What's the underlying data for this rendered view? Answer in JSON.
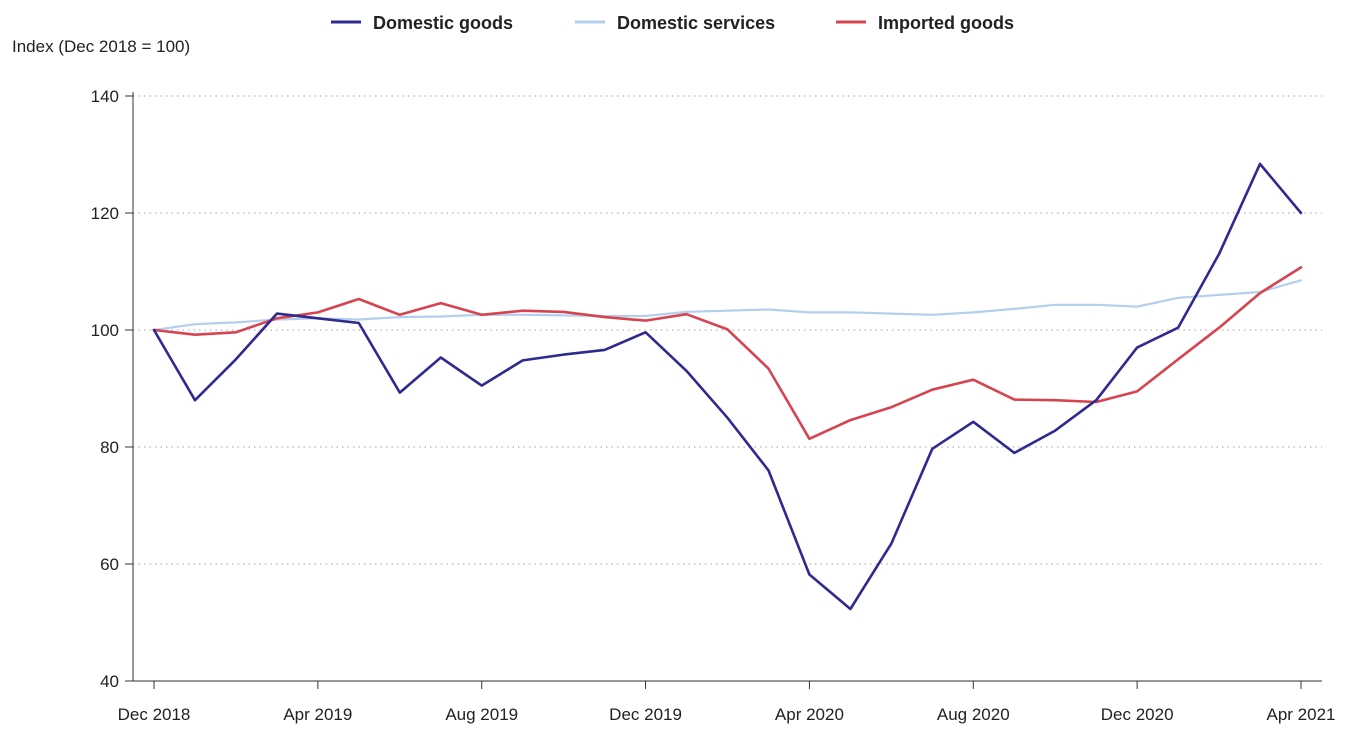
{
  "chart_data": {
    "type": "line",
    "ylabel": "Index (Dec 2018 = 100)",
    "ylim": [
      40,
      140
    ],
    "yticks": [
      40,
      60,
      80,
      100,
      120,
      140
    ],
    "xtick_labels": [
      "Dec 2018",
      "Apr 2019",
      "Aug 2019",
      "Dec 2019",
      "Apr 2020",
      "Aug 2020",
      "Dec 2020",
      "Apr 2021"
    ],
    "x": [
      "Dec 2018",
      "Jan 2019",
      "Feb 2019",
      "Mar 2019",
      "Apr 2019",
      "May 2019",
      "Jun 2019",
      "Jul 2019",
      "Aug 2019",
      "Sep 2019",
      "Oct 2019",
      "Nov 2019",
      "Dec 2019",
      "Jan 2020",
      "Feb 2020",
      "Mar 2020",
      "Apr 2020",
      "May 2020",
      "Jun 2020",
      "Jul 2020",
      "Aug 2020",
      "Sep 2020",
      "Oct 2020",
      "Nov 2020",
      "Dec 2020",
      "Jan 2021",
      "Feb 2021",
      "Mar 2021",
      "Apr 2021"
    ],
    "grid": "horizontal-dotted",
    "legend_position": "top",
    "series": [
      {
        "name": "Domestic goods",
        "color": "#2e2a8f",
        "values": [
          100.0,
          88.0,
          95.0,
          102.8,
          102.0,
          101.2,
          89.3,
          95.3,
          90.5,
          94.8,
          95.8,
          96.6,
          99.6,
          93.0,
          85.0,
          76.0,
          58.2,
          52.3,
          63.5,
          79.7,
          84.3,
          79.0,
          82.8,
          88.0,
          97.0,
          100.4,
          113.0,
          128.4,
          120.0
        ]
      },
      {
        "name": "Domestic services",
        "color": "#b4cfee",
        "values": [
          100.0,
          101.0,
          101.3,
          101.8,
          102.0,
          101.8,
          102.2,
          102.3,
          102.6,
          102.6,
          102.5,
          102.4,
          102.4,
          103.1,
          103.3,
          103.5,
          103.0,
          103.0,
          102.8,
          102.6,
          103.0,
          103.6,
          104.3,
          104.3,
          104.0,
          105.5,
          106.0,
          106.5,
          108.5
        ]
      },
      {
        "name": "Imported goods",
        "color": "#d6454f",
        "values": [
          100.0,
          99.2,
          99.6,
          102.0,
          103.0,
          105.3,
          102.6,
          104.6,
          102.6,
          103.3,
          103.1,
          102.2,
          101.6,
          102.7,
          100.1,
          93.4,
          81.4,
          84.6,
          86.8,
          89.8,
          91.5,
          88.1,
          88.0,
          87.7,
          89.5,
          95.0,
          100.4,
          106.3,
          110.7
        ]
      }
    ]
  }
}
